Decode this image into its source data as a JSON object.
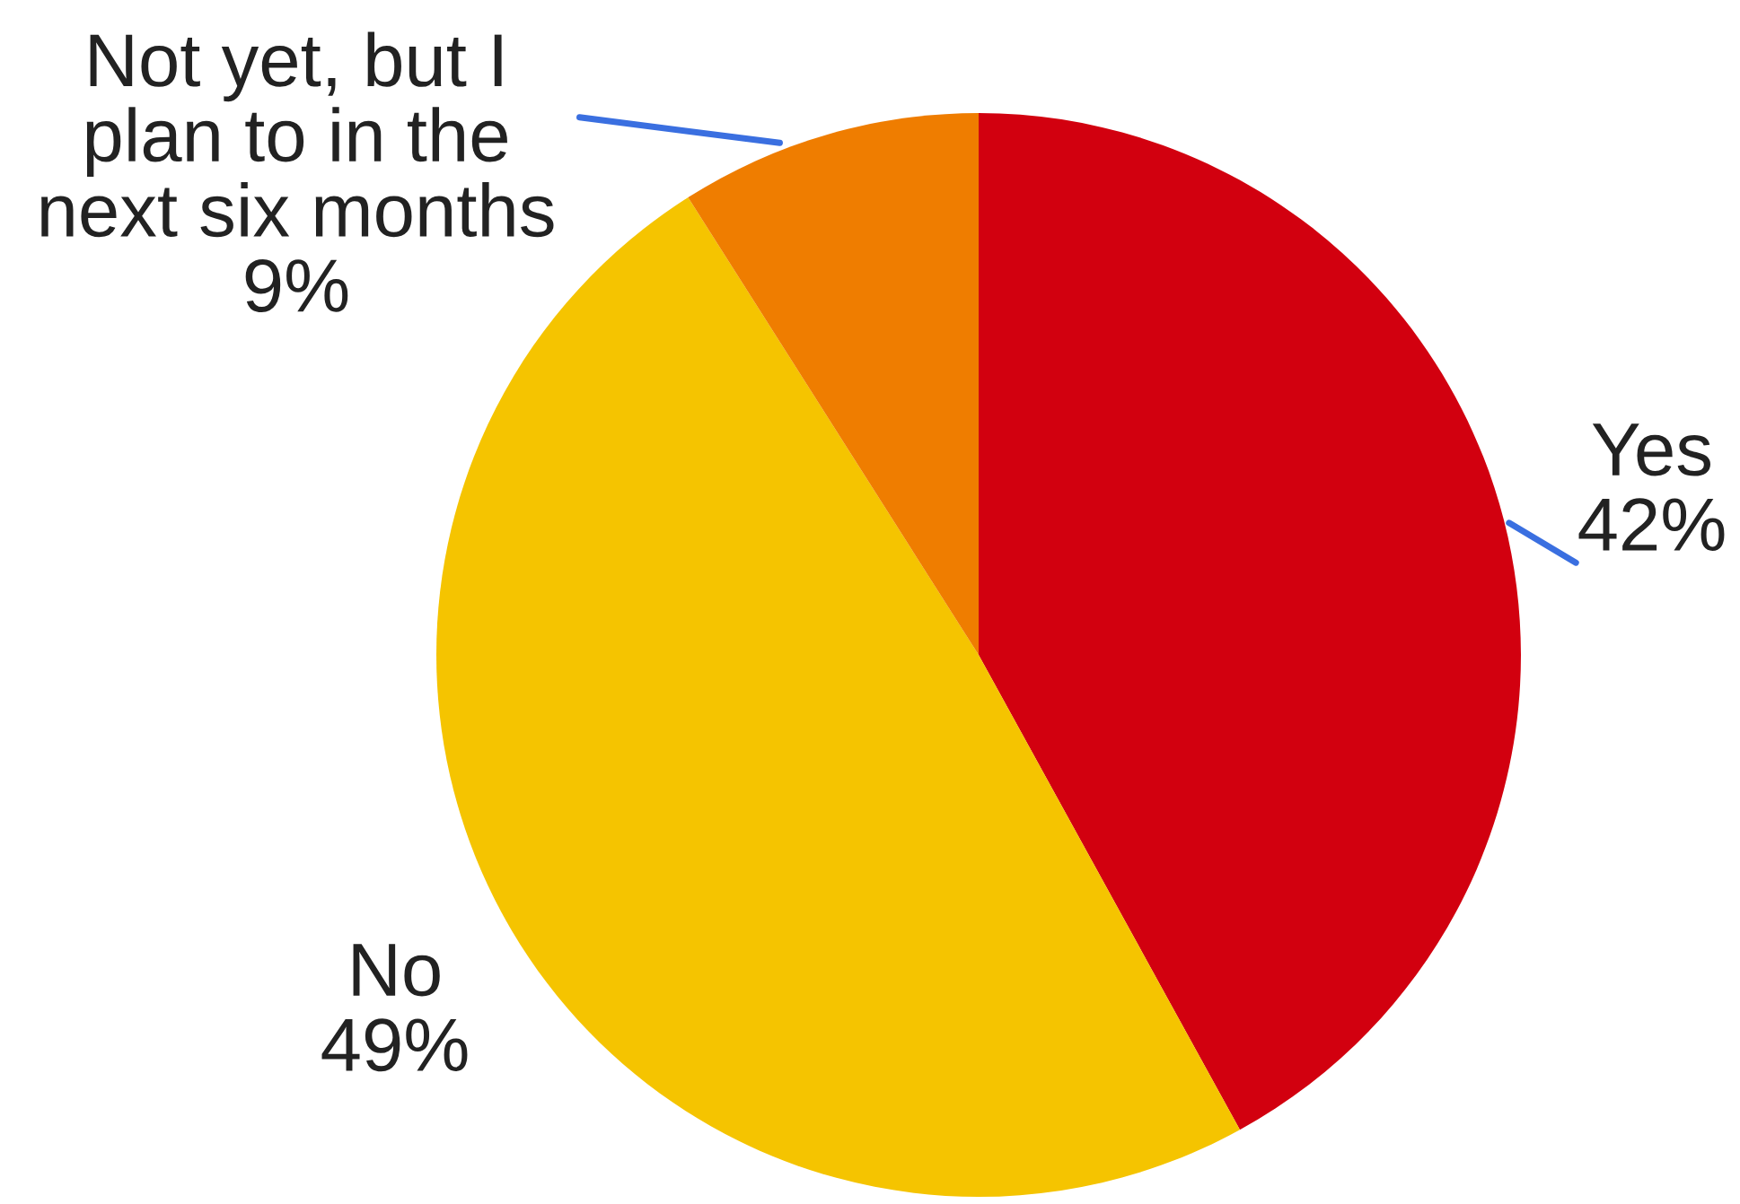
{
  "chart_data": {
    "type": "pie",
    "categories": [
      "Yes",
      "No",
      "Not yet, but I\nplan to in the\nnext six months"
    ],
    "values": [
      42,
      49,
      9
    ],
    "colors": [
      "#d2000f",
      "#f5c400",
      "#ef7d00"
    ],
    "value_labels": [
      "42%",
      "49%",
      "9%"
    ],
    "legend": false
  }
}
